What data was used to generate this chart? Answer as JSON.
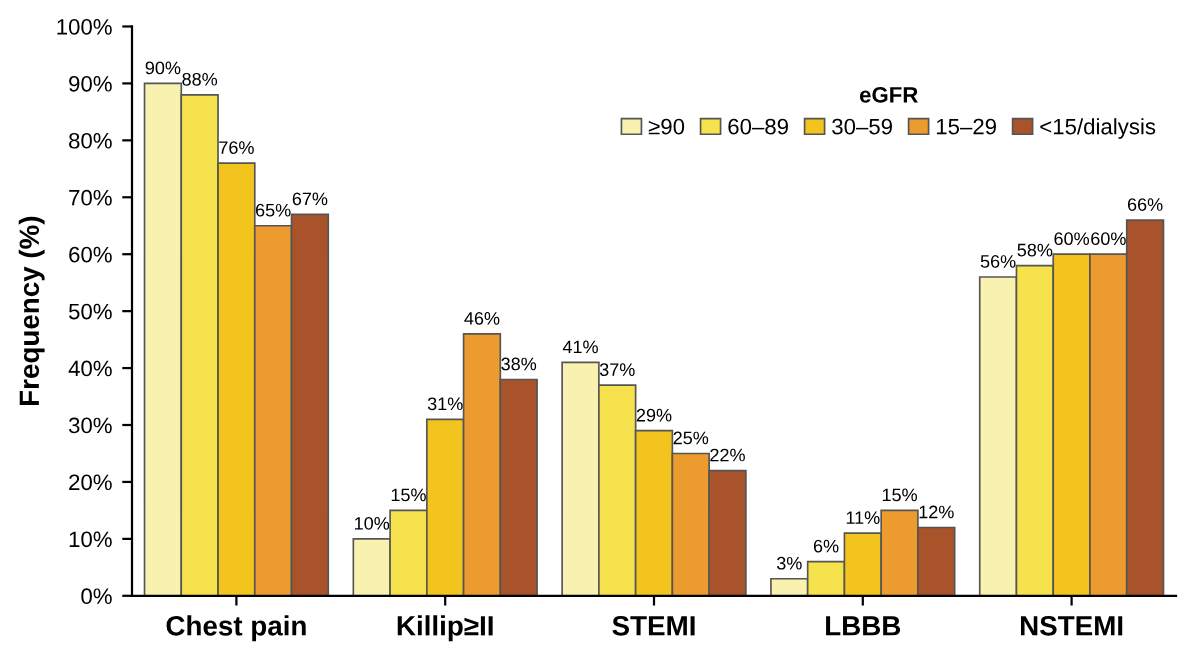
{
  "chart_data": {
    "type": "bar",
    "ylabel": "Frequency (%)",
    "legend_title": "eGFR",
    "legend": "top right",
    "grid": false,
    "categories": [
      "Chest pain",
      "Killip≥II",
      "STEMI",
      "LBBB",
      "NSTEMI"
    ],
    "ylim": [
      0,
      100
    ],
    "yticks": [
      {
        "value": 0,
        "label": "0%"
      },
      {
        "value": 10,
        "label": "10%"
      },
      {
        "value": 20,
        "label": "20%"
      },
      {
        "value": 30,
        "label": "30%"
      },
      {
        "value": 40,
        "label": "40%"
      },
      {
        "value": 50,
        "label": "50%"
      },
      {
        "value": 60,
        "label": "60%"
      },
      {
        "value": 70,
        "label": "70%"
      },
      {
        "value": 80,
        "label": "80%"
      },
      {
        "value": 90,
        "label": "90%"
      },
      {
        "value": 100,
        "label": "100%"
      }
    ],
    "series": [
      {
        "name": "≥90",
        "color": "#f8f1b0",
        "values": [
          90,
          10,
          41,
          3,
          56
        ],
        "value_labels": [
          "90%",
          "10%",
          "41%",
          "3%",
          "56%"
        ]
      },
      {
        "name": "60–89",
        "color": "#f6e24c",
        "values": [
          88,
          15,
          37,
          6,
          58
        ],
        "value_labels": [
          "88%",
          "15%",
          "37%",
          "6%",
          "58%"
        ]
      },
      {
        "name": "30–59",
        "color": "#f3c41e",
        "values": [
          76,
          31,
          29,
          11,
          60
        ],
        "value_labels": [
          "76%",
          "31%",
          "29%",
          "11%",
          "60%"
        ]
      },
      {
        "name": "15–29",
        "color": "#ec9c2e",
        "values": [
          65,
          46,
          25,
          15,
          60
        ],
        "value_labels": [
          "65%",
          "46%",
          "25%",
          "15%",
          "60%"
        ]
      },
      {
        "name": "<15/dialysis",
        "color": "#a9532b",
        "values": [
          67,
          38,
          22,
          12,
          66
        ],
        "value_labels": [
          "67%",
          "38%",
          "22%",
          "12%",
          "66%"
        ]
      }
    ]
  }
}
